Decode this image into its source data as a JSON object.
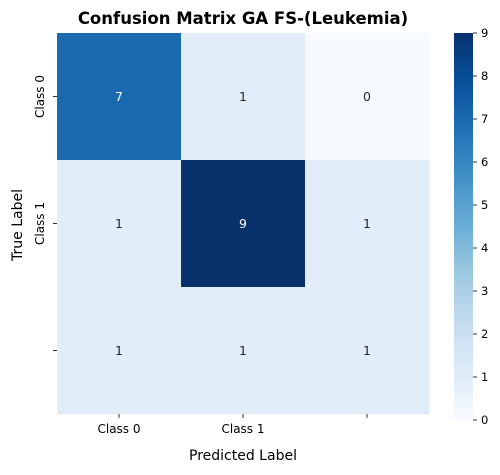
{
  "chart_data": {
    "type": "heatmap",
    "title": "Confusion Matrix GA FS-(Leukemia)",
    "xlabel": "Predicted Label",
    "ylabel": "True Label",
    "x_tick_labels": [
      "Class 0",
      "Class 1",
      ""
    ],
    "y_tick_labels": [
      "Class 0",
      "Class 1",
      ""
    ],
    "values": [
      [
        7,
        1,
        0
      ],
      [
        1,
        9,
        1
      ],
      [
        1,
        1,
        1
      ]
    ],
    "colormap": "Blues",
    "color_range": [
      0,
      9
    ],
    "colorbar_ticks": [
      0,
      1,
      2,
      3,
      4,
      5,
      6,
      7,
      8,
      9
    ],
    "annotated": true
  }
}
